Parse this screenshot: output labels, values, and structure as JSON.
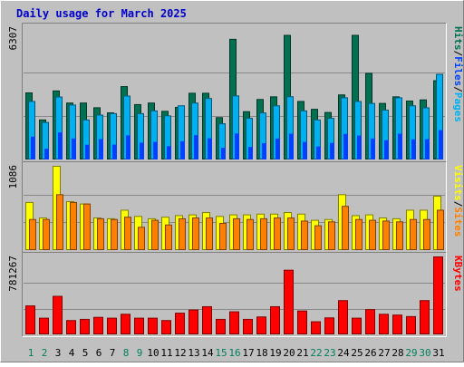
{
  "title": "Daily usage for March 2025",
  "colors": {
    "background": "#c0c0c0",
    "border_light": "#ffffff",
    "border_dark": "#808080",
    "title": "#0000cc",
    "hits": "#007050",
    "hits_edge": "#003528",
    "files": "#00b0f0",
    "files_edge": "#005878",
    "pages": "#0040ff",
    "visits": "#ffff00",
    "visits_edge": "#808000",
    "sites": "#ff8000",
    "sites_edge": "#804000",
    "kbytes": "#ff0000",
    "kbytes_edge": "#800000",
    "weekend_day": "#00805c",
    "weekday_day": "#008000",
    "gridline": "#888888"
  },
  "chart_data": [
    {
      "type": "bar",
      "panel": "hits-files-pages",
      "ymax_label": "6307",
      "ymax": 6307,
      "legend": [
        "Pages",
        "Files",
        "Hits"
      ],
      "grid": true,
      "x": [
        "1",
        "2",
        "3",
        "4",
        "5",
        "6",
        "7",
        "8",
        "9",
        "10",
        "11",
        "12",
        "13",
        "14",
        "15",
        "16",
        "17",
        "18",
        "19",
        "20",
        "21",
        "22",
        "23",
        "24",
        "25",
        "26",
        "27",
        "28",
        "29",
        "30",
        "31"
      ],
      "series": [
        {
          "name": "Hits",
          "values": [
            3196,
            1907,
            3290,
            2713,
            2713,
            2488,
            2245,
            3496,
            2638,
            2713,
            2318,
            2507,
            3178,
            3178,
            2017,
            5751,
            2300,
            2882,
            3008,
            5939,
            2788,
            2413,
            2262,
            3100,
            5939,
            4127,
            2694,
            3008,
            2807,
            2863,
            3778
          ]
        },
        {
          "name": "Files",
          "values": [
            2787,
            1787,
            3000,
            2618,
            1907,
            2138,
            2207,
            3045,
            2207,
            2337,
            2101,
            2582,
            2713,
            2929,
            1725,
            3053,
            1983,
            2242,
            2581,
            3012,
            2340,
            1907,
            1983,
            2964,
            2787,
            2694,
            2375,
            2964,
            2582,
            2486,
            4080
          ]
        },
        {
          "name": "Pages",
          "values": [
            1090,
            510,
            1290,
            1000,
            700,
            970,
            710,
            1150,
            800,
            840,
            640,
            870,
            1160,
            1010,
            560,
            1240,
            600,
            780,
            1000,
            1230,
            840,
            620,
            790,
            1220,
            1140,
            1000,
            920,
            1230,
            960,
            970,
            1400
          ]
        }
      ]
    },
    {
      "type": "bar",
      "panel": "visits-sites",
      "ymax_label": "1086",
      "ymax": 1086,
      "legend": [
        "Sites",
        "Visits"
      ],
      "grid": true,
      "x": [
        "1",
        "2",
        "3",
        "4",
        "5",
        "6",
        "7",
        "8",
        "9",
        "10",
        "11",
        "12",
        "13",
        "14",
        "15",
        "16",
        "17",
        "18",
        "19",
        "20",
        "21",
        "22",
        "23",
        "24",
        "25",
        "26",
        "27",
        "28",
        "29",
        "30",
        "31"
      ],
      "series": [
        {
          "name": "Visits",
          "values": [
            620,
            420,
            1086,
            630,
            600,
            420,
            410,
            520,
            440,
            410,
            430,
            450,
            460,
            490,
            440,
            460,
            460,
            470,
            470,
            490,
            470,
            390,
            400,
            720,
            450,
            460,
            420,
            410,
            520,
            520,
            700
          ]
        },
        {
          "name": "Sites",
          "values": [
            400,
            400,
            720,
            620,
            600,
            410,
            400,
            430,
            300,
            390,
            330,
            410,
            420,
            420,
            350,
            410,
            400,
            410,
            420,
            420,
            380,
            320,
            370,
            570,
            400,
            390,
            380,
            370,
            400,
            400,
            520
          ]
        }
      ]
    },
    {
      "type": "bar",
      "panel": "kbytes",
      "ymax_label": "781267",
      "ymax": 781267,
      "legend": [
        "KBytes"
      ],
      "grid": true,
      "x": [
        "1",
        "2",
        "3",
        "4",
        "5",
        "6",
        "7",
        "8",
        "9",
        "10",
        "11",
        "12",
        "13",
        "14",
        "15",
        "16",
        "17",
        "18",
        "19",
        "20",
        "21",
        "22",
        "23",
        "24",
        "25",
        "26",
        "27",
        "28",
        "29",
        "30",
        "31"
      ],
      "series": [
        {
          "name": "KBytes",
          "values": [
            290000,
            167000,
            386000,
            143000,
            155000,
            175000,
            167000,
            206000,
            167000,
            167000,
            143000,
            217000,
            249000,
            282000,
            155000,
            231000,
            155000,
            179000,
            282000,
            648000,
            239000,
            131000,
            170000,
            343000,
            167000,
            253000,
            206000,
            198000,
            183000,
            343000,
            781267
          ]
        }
      ]
    }
  ],
  "days": [
    {
      "label": "1",
      "weekend": true
    },
    {
      "label": "2",
      "weekend": true
    },
    {
      "label": "3",
      "weekend": false
    },
    {
      "label": "4",
      "weekend": false
    },
    {
      "label": "5",
      "weekend": false
    },
    {
      "label": "6",
      "weekend": false
    },
    {
      "label": "7",
      "weekend": false
    },
    {
      "label": "8",
      "weekend": true
    },
    {
      "label": "9",
      "weekend": true
    },
    {
      "label": "10",
      "weekend": false
    },
    {
      "label": "11",
      "weekend": false
    },
    {
      "label": "12",
      "weekend": false
    },
    {
      "label": "13",
      "weekend": false
    },
    {
      "label": "14",
      "weekend": false
    },
    {
      "label": "15",
      "weekend": true
    },
    {
      "label": "16",
      "weekend": true
    },
    {
      "label": "17",
      "weekend": false
    },
    {
      "label": "18",
      "weekend": false
    },
    {
      "label": "19",
      "weekend": false
    },
    {
      "label": "20",
      "weekend": false
    },
    {
      "label": "21",
      "weekend": false
    },
    {
      "label": "22",
      "weekend": true
    },
    {
      "label": "23",
      "weekend": true
    },
    {
      "label": "24",
      "weekend": false
    },
    {
      "label": "25",
      "weekend": false
    },
    {
      "label": "26",
      "weekend": false
    },
    {
      "label": "27",
      "weekend": false
    },
    {
      "label": "28",
      "weekend": false
    },
    {
      "label": "29",
      "weekend": true
    },
    {
      "label": "30",
      "weekend": true
    },
    {
      "label": "31",
      "weekend": false
    }
  ],
  "legend_separator": "/"
}
